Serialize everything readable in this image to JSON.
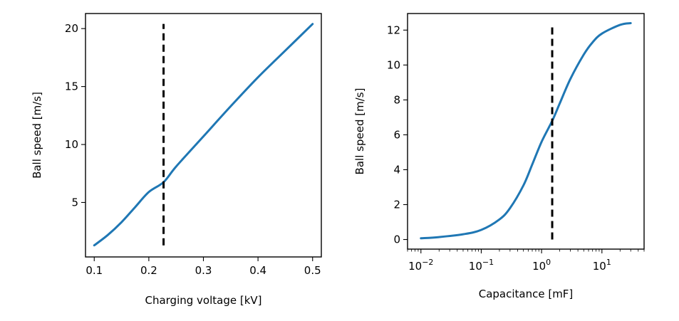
{
  "chart_data": [
    {
      "type": "line",
      "xlabel": "Charging voltage [kV]",
      "ylabel": "Ball speed [m/s]",
      "x_scale": "linear",
      "xlim": [
        0.084,
        0.516
      ],
      "ylim": [
        0.3,
        21.3
      ],
      "xticks": [
        0.1,
        0.2,
        0.3,
        0.4,
        0.5
      ],
      "xtick_labels": [
        "0.1",
        "0.2",
        "0.3",
        "0.4",
        "0.5"
      ],
      "yticks": [
        5,
        10,
        15,
        20
      ],
      "ytick_labels": [
        "5",
        "10",
        "15",
        "20"
      ],
      "series": [
        {
          "color": "#1f77b4",
          "x": [
            0.1,
            0.125,
            0.15,
            0.175,
            0.2,
            0.227,
            0.25,
            0.3,
            0.35,
            0.4,
            0.45,
            0.5
          ],
          "y": [
            1.3,
            2.2,
            3.3,
            4.6,
            5.9,
            6.75,
            8.1,
            10.7,
            13.3,
            15.8,
            18.1,
            20.4
          ]
        }
      ],
      "reference_line": {
        "x": 0.227,
        "y_range": [
          1.3,
          20.4
        ],
        "color": "#000000",
        "style": "dashed"
      },
      "grid": false,
      "legend": "none"
    },
    {
      "type": "line",
      "xlabel": "Capacitance [mF]",
      "ylabel": "Ball speed [m/s]",
      "x_scale": "log",
      "xlim": [
        0.006,
        50
      ],
      "ylim": [
        -0.55,
        12.95
      ],
      "xticks": [
        0.01,
        0.1,
        1,
        10
      ],
      "xtick_labels": [
        {
          "base": "10",
          "exp": "−2"
        },
        {
          "base": "10",
          "exp": "−1"
        },
        {
          "base": "10",
          "exp": "0"
        },
        {
          "base": "10",
          "exp": "1"
        }
      ],
      "yticks": [
        0,
        2,
        4,
        6,
        8,
        10,
        12
      ],
      "ytick_labels": [
        "0",
        "2",
        "4",
        "6",
        "8",
        "10",
        "12"
      ],
      "series": [
        {
          "color": "#1f77b4",
          "x": [
            0.01,
            0.02,
            0.05,
            0.1,
            0.2,
            0.3,
            0.5,
            0.7,
            1.0,
            1.5,
            2,
            3,
            5,
            7,
            10,
            20,
            30
          ],
          "y": [
            0.07,
            0.14,
            0.3,
            0.55,
            1.15,
            1.8,
            3.1,
            4.3,
            5.6,
            6.8,
            7.8,
            9.2,
            10.6,
            11.3,
            11.8,
            12.3,
            12.4
          ]
        }
      ],
      "reference_line": {
        "x": 1.5,
        "y_range": [
          0.0,
          12.4
        ],
        "color": "#000000",
        "style": "dashed"
      },
      "grid": false,
      "legend": "none"
    }
  ]
}
